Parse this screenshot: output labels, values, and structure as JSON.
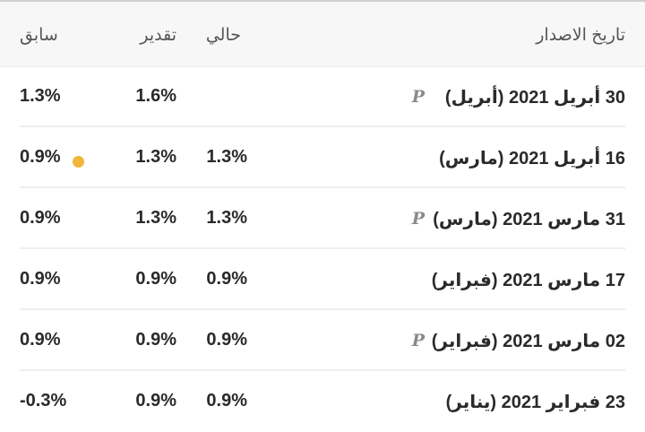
{
  "header": {
    "release_date": "تاريخ الاصدار",
    "actual": "حالي",
    "forecast": "تقدير",
    "previous": "سابق"
  },
  "colors": {
    "accent_dot": "#f0b63c",
    "preliminary_mark": "#8a8a8a"
  },
  "rows": [
    {
      "date": "30 أبريل 2021 (أبريل)",
      "preliminary": "P",
      "actual": "",
      "forecast": "1.6%",
      "previous": "1.3%",
      "revised": false
    },
    {
      "date": "16 أبريل 2021 (مارس)",
      "preliminary": "",
      "actual": "1.3%",
      "forecast": "1.3%",
      "previous": "0.9%",
      "revised": true
    },
    {
      "date": "31 مارس 2021 (مارس)",
      "preliminary": "P",
      "actual": "1.3%",
      "forecast": "1.3%",
      "previous": "0.9%",
      "revised": false
    },
    {
      "date": "17 مارس 2021 (فبراير)",
      "preliminary": "",
      "actual": "0.9%",
      "forecast": "0.9%",
      "previous": "0.9%",
      "revised": false
    },
    {
      "date": "02 مارس 2021 (فبراير)",
      "preliminary": "P",
      "actual": "0.9%",
      "forecast": "0.9%",
      "previous": "0.9%",
      "revised": false
    },
    {
      "date": "23 فبراير 2021 (يناير)",
      "preliminary": "",
      "actual": "0.9%",
      "forecast": "0.9%",
      "previous": "-0.3%",
      "revised": false
    }
  ]
}
